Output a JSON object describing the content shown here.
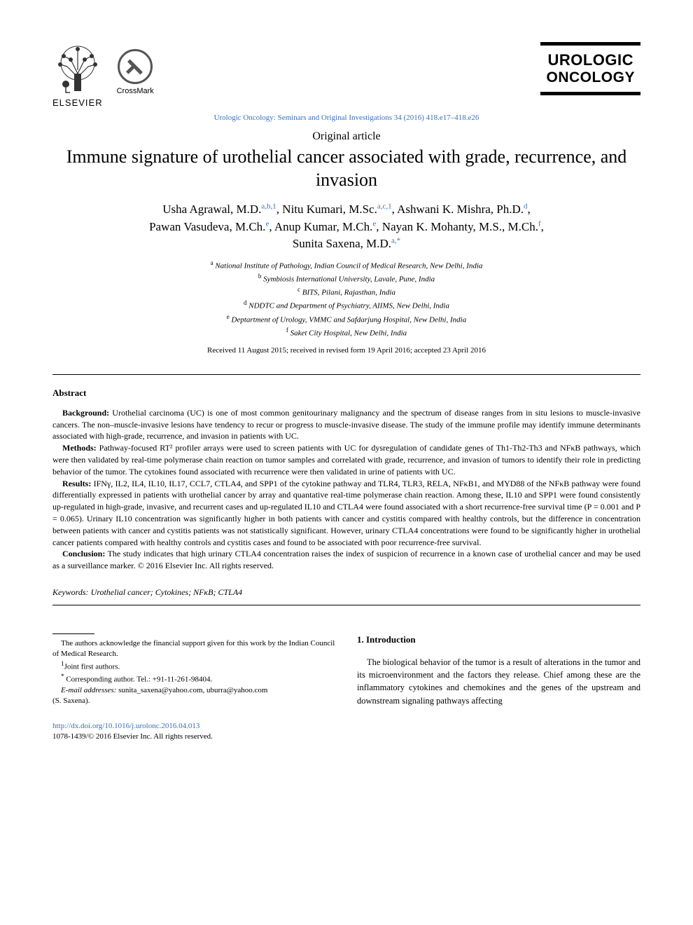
{
  "header": {
    "elsevier_label": "ELSEVIER",
    "crossmark_label": "CrossMark",
    "journal_box_line1": "UROLOGIC",
    "journal_box_line2": "ONCOLOGY",
    "citation": "Urologic Oncology: Seminars and Original Investigations 34 (2016) 418.e17–418.e26"
  },
  "article": {
    "type": "Original article",
    "title": "Immune signature of urothelial cancer associated with grade, recurrence, and invasion",
    "authors_html": "Usha Agrawal, M.D.<sup>a,b,1</sup>, Nitu Kumari, M.Sc.<sup>a,c,1</sup>, Ashwani K. Mishra, Ph.D.<sup>d</sup>,<br>Pawan Vasudeva, M.Ch.<sup>e</sup>, Anup Kumar, M.Ch.<sup>e</sup>, Nayan K. Mohanty, M.S., M.Ch.<sup>f</sup>,<br>Sunita Saxena, M.D.<sup>a,*</sup>"
  },
  "affiliations": {
    "a": "National Institute of Pathology, Indian Council of Medical Research, New Delhi, India",
    "b": "Symbiosis International University, Lavale, Pune, India",
    "c": "BITS, Pilani, Rajasthan, India",
    "d": "NDDTC and Department of Psychiatry, AIIMS, New Delhi, India",
    "e": "Deptartment of Urology, VMMC and Safdarjung Hospital, New Delhi, India",
    "f": "Saket City Hospital, New Delhi, India"
  },
  "received": "Received 11 August 2015; received in revised form 19 April 2016; accepted 23 April 2016",
  "abstract": {
    "heading": "Abstract",
    "background_label": "Background:",
    "background": " Urothelial carcinoma (UC) is one of most common genitourinary malignancy and the spectrum of disease ranges from in situ lesions to muscle-invasive cancers. The non–muscle-invasive lesions have tendency to recur or progress to muscle-invasive disease. The study of the immune profile may identify immune determinants associated with high-grade, recurrence, and invasion in patients with UC.",
    "methods_label": "Methods:",
    "methods": " Pathway-focused RT² profiler arrays were used to screen patients with UC for dysregulation of candidate genes of Th1-Th2-Th3 and NFκB pathways, which were then validated by real-time polymerase chain reaction on tumor samples and correlated with grade, recurrence, and invasion of tumors to identify their role in predicting behavior of the tumor. The cytokines found associated with recurrence were then validated in urine of patients with UC.",
    "results_label": "Results:",
    "results": " IFNγ, IL2, IL4, IL10, IL17, CCL7, CTLA4, and SPP1 of the cytokine pathway and TLR4, TLR3, RELA, NFκB1, and MYD88 of the NFκB pathway were found differentially expressed in patients with urothelial cancer by array and quantative real-time polymerase chain reaction. Among these, IL10 and SPP1 were found consistently up-regulated in high-grade, invasive, and recurrent cases and up-regulated IL10 and CTLA4 were found associated with a short recurrence-free survival time (P = 0.001 and P = 0.065). Urinary IL10 concentration was significantly higher in both patients with cancer and cystitis compared with healthy controls, but the difference in concentration between patients with cancer and cystitis patients was not statistically significant. However, urinary CTLA4 concentrations were found to be significantly higher in urothelial cancer patients compared with healthy controls and cystitis cases and found to be associated with poor recurrence-free survival.",
    "conclusion_label": "Conclusion:",
    "conclusion": " The study indicates that high urinary CTLA4 concentration raises the index of suspicion of recurrence in a known case of urothelial cancer and may be used as a surveillance marker. © 2016 Elsevier Inc. All rights reserved."
  },
  "keywords": {
    "label": "Keywords:",
    "text": " Urothelial cancer; Cytokines; NFκB; CTLA4"
  },
  "footnotes": {
    "ack": "The authors acknowledge the financial support given for this work by the Indian Council of Medical Research.",
    "joint": "Joint first authors.",
    "corresponding": "Corresponding author. Tel.: +91-11-261-98404.",
    "email_label": "E-mail addresses:",
    "emails": " sunita_saxena@yahoo.com, uburra@yahoo.com",
    "email_name": "(S. Saxena)."
  },
  "intro": {
    "heading": "1.  Introduction",
    "para1": "The biological behavior of the tumor is a result of alterations in the tumor and its microenvironment and the factors they release. Chief among these are the inflammatory cytokines and chemokines and the genes of the upstream and downstream signaling pathways affecting"
  },
  "footer": {
    "doi": "http://dx.doi.org/10.1016/j.urolonc.2016.04.013",
    "copyright": "1078-1439/© 2016 Elsevier Inc. All rights reserved."
  },
  "colors": {
    "link_blue": "#3a6fb7",
    "text_black": "#000000",
    "background": "#ffffff"
  }
}
